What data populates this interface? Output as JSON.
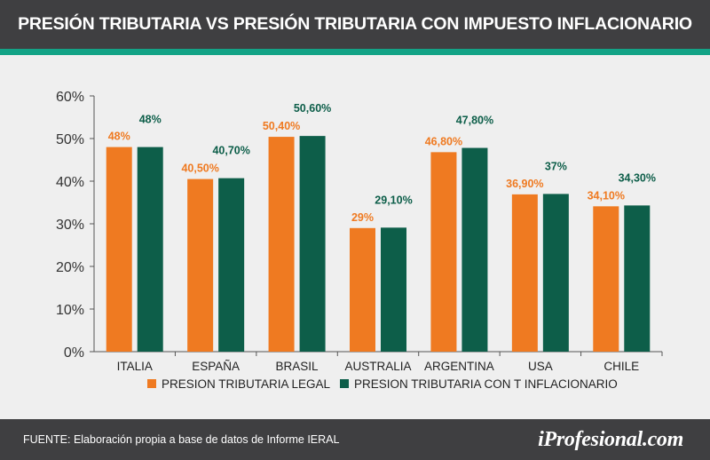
{
  "header": {
    "title": "PRESIÓN TRIBUTARIA VS PRESIÓN TRIBUTARIA CON IMPUESTO INFLACIONARIO"
  },
  "footer": {
    "source": "FUENTE: Elaboración propia a base de datos de Informe IERAL",
    "brand": "iProfesional.com"
  },
  "colors": {
    "header_bg": "#3f3f41",
    "accent": "#13a386",
    "series_legal": "#ef7a21",
    "series_inflacionario": "#0d5e49",
    "background": "#efefef"
  },
  "chart_data": {
    "type": "bar",
    "title": "PRESIÓN TRIBUTARIA VS PRESIÓN TRIBUTARIA CON IMPUESTO INFLACIONARIO",
    "xlabel": "",
    "ylabel": "",
    "ylim": [
      0,
      60
    ],
    "yticks": [
      "0%",
      "10%",
      "20%",
      "30%",
      "40%",
      "50%",
      "60%"
    ],
    "ytick_values": [
      0,
      10,
      20,
      30,
      40,
      50,
      60
    ],
    "grid": false,
    "legend_position": "bottom-center",
    "categories": [
      "ITALIA",
      "ESPAÑA",
      "BRASIL",
      "AUSTRALIA",
      "ARGENTINA",
      "USA",
      "CHILE"
    ],
    "series": [
      {
        "name": "PRESION TRIBUTARIA LEGAL",
        "color": "#ef7a21",
        "values": [
          48,
          40.5,
          50.4,
          29,
          46.8,
          36.9,
          34.1
        ],
        "labels": [
          "48%",
          "40,50%",
          "50,40%",
          "29%",
          "46,80%",
          "36,90%",
          "34,10%"
        ]
      },
      {
        "name": "PRESION TRIBUTARIA CON T INFLACIONARIO",
        "color": "#0d5e49",
        "values": [
          48,
          40.7,
          50.6,
          29.1,
          47.8,
          37,
          34.3
        ],
        "labels": [
          "48%",
          "40,70%",
          "50,60%",
          "29,10%",
          "47,80%",
          "37%",
          "34,30%"
        ]
      }
    ]
  }
}
